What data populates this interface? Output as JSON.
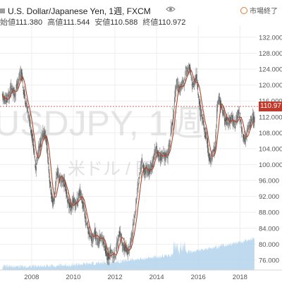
{
  "header": {
    "symbol_title": "U.S. Dollar/Japanese Yen, 1週, FXCM",
    "market_status": "市場終了",
    "ohlc": [
      {
        "label": "始値",
        "value": "111.380"
      },
      {
        "label": "高値",
        "value": "111.544"
      },
      {
        "label": "安値",
        "value": "110.588"
      },
      {
        "label": "終値",
        "value": "110.972"
      }
    ]
  },
  "watermark": {
    "symbol": "USDJPY, 1週",
    "description": "米ドル / 円"
  },
  "last_price_label": "110.97",
  "colors": {
    "candle_up": "#8f8f8f",
    "candle_down": "#5a5a5a",
    "moving_average": "#b5452a",
    "volume": "#a9cdea",
    "last_price": "#c0392b",
    "grid": "#eeeeee"
  },
  "chart_data": {
    "type": "candlestick",
    "x_axis": {
      "ticks": [
        "2008",
        "2010",
        "2012",
        "2014",
        "2016",
        "2018"
      ]
    },
    "y_axis": {
      "ticks": [
        "76.000",
        "80.000",
        "84.000",
        "88.000",
        "92.000",
        "96.000",
        "100.000",
        "104.000",
        "108.000",
        "112.000",
        "116.000",
        "120.000",
        "124.000",
        "128.000",
        "132.000"
      ],
      "ylim": [
        73.5,
        135.0
      ]
    },
    "grid": true,
    "series": [
      {
        "points": [
          [
            2006.6,
            117
          ],
          [
            2006.8,
            116
          ],
          [
            2007.0,
            119
          ],
          [
            2007.2,
            118
          ],
          [
            2007.4,
            122
          ],
          [
            2007.5,
            123
          ],
          [
            2007.6,
            119
          ],
          [
            2007.7,
            116
          ],
          [
            2007.8,
            114
          ],
          [
            2007.9,
            111
          ],
          [
            2008.0,
            108
          ],
          [
            2008.1,
            104
          ],
          [
            2008.2,
            99
          ],
          [
            2008.3,
            103
          ],
          [
            2008.4,
            105
          ],
          [
            2008.5,
            107
          ],
          [
            2008.6,
            108
          ],
          [
            2008.7,
            106
          ],
          [
            2008.8,
            100
          ],
          [
            2008.9,
            94
          ],
          [
            2009.0,
            90
          ],
          [
            2009.1,
            92
          ],
          [
            2009.2,
            98
          ],
          [
            2009.3,
            97
          ],
          [
            2009.4,
            96
          ],
          [
            2009.5,
            96
          ],
          [
            2009.6,
            95
          ],
          [
            2009.7,
            92
          ],
          [
            2009.8,
            90
          ],
          [
            2009.9,
            89
          ],
          [
            2010.0,
            91
          ],
          [
            2010.1,
            90
          ],
          [
            2010.2,
            91
          ],
          [
            2010.3,
            93
          ],
          [
            2010.4,
            92
          ],
          [
            2010.5,
            89
          ],
          [
            2010.6,
            86
          ],
          [
            2010.7,
            84
          ],
          [
            2010.8,
            82
          ],
          [
            2010.9,
            81
          ],
          [
            2011.0,
            83
          ],
          [
            2011.1,
            82
          ],
          [
            2011.2,
            80
          ],
          [
            2011.3,
            82
          ],
          [
            2011.4,
            81
          ],
          [
            2011.5,
            80
          ],
          [
            2011.6,
            77
          ],
          [
            2011.7,
            77
          ],
          [
            2011.8,
            78
          ],
          [
            2011.9,
            77
          ],
          [
            2012.0,
            77
          ],
          [
            2012.1,
            80
          ],
          [
            2012.2,
            83
          ],
          [
            2012.3,
            81
          ],
          [
            2012.4,
            79
          ],
          [
            2012.5,
            79
          ],
          [
            2012.6,
            78
          ],
          [
            2012.7,
            79
          ],
          [
            2012.8,
            82
          ],
          [
            2012.9,
            85
          ],
          [
            2013.0,
            90
          ],
          [
            2013.1,
            95
          ],
          [
            2013.2,
            98
          ],
          [
            2013.3,
            101
          ],
          [
            2013.4,
            98
          ],
          [
            2013.5,
            99
          ],
          [
            2013.6,
            98
          ],
          [
            2013.7,
            99
          ],
          [
            2013.8,
            100
          ],
          [
            2013.9,
            103
          ],
          [
            2014.0,
            104
          ],
          [
            2014.1,
            102
          ],
          [
            2014.2,
            102
          ],
          [
            2014.3,
            102
          ],
          [
            2014.4,
            102
          ],
          [
            2014.5,
            102
          ],
          [
            2014.6,
            104
          ],
          [
            2014.7,
            109
          ],
          [
            2014.8,
            112
          ],
          [
            2014.9,
            119
          ],
          [
            2015.0,
            120
          ],
          [
            2015.1,
            119
          ],
          [
            2015.2,
            120
          ],
          [
            2015.3,
            120
          ],
          [
            2015.4,
            124
          ],
          [
            2015.5,
            124
          ],
          [
            2015.6,
            124
          ],
          [
            2015.7,
            120
          ],
          [
            2015.8,
            120
          ],
          [
            2015.9,
            122
          ],
          [
            2016.0,
            118
          ],
          [
            2016.1,
            113
          ],
          [
            2016.2,
            112
          ],
          [
            2016.3,
            108
          ],
          [
            2016.4,
            107
          ],
          [
            2016.5,
            102
          ],
          [
            2016.6,
            101
          ],
          [
            2016.7,
            103
          ],
          [
            2016.8,
            104
          ],
          [
            2016.9,
            114
          ],
          [
            2017.0,
            117
          ],
          [
            2017.1,
            114
          ],
          [
            2017.2,
            113
          ],
          [
            2017.3,
            111
          ],
          [
            2017.4,
            111
          ],
          [
            2017.5,
            111
          ],
          [
            2017.6,
            112
          ],
          [
            2017.7,
            110
          ],
          [
            2017.8,
            110
          ],
          [
            2017.9,
            113
          ],
          [
            2018.0,
            112
          ],
          [
            2018.1,
            108
          ],
          [
            2018.2,
            106
          ],
          [
            2018.3,
            107
          ],
          [
            2018.4,
            110
          ],
          [
            2018.5,
            110
          ],
          [
            2018.6,
            112
          ],
          [
            2018.7,
            111
          ]
        ]
      }
    ]
  }
}
